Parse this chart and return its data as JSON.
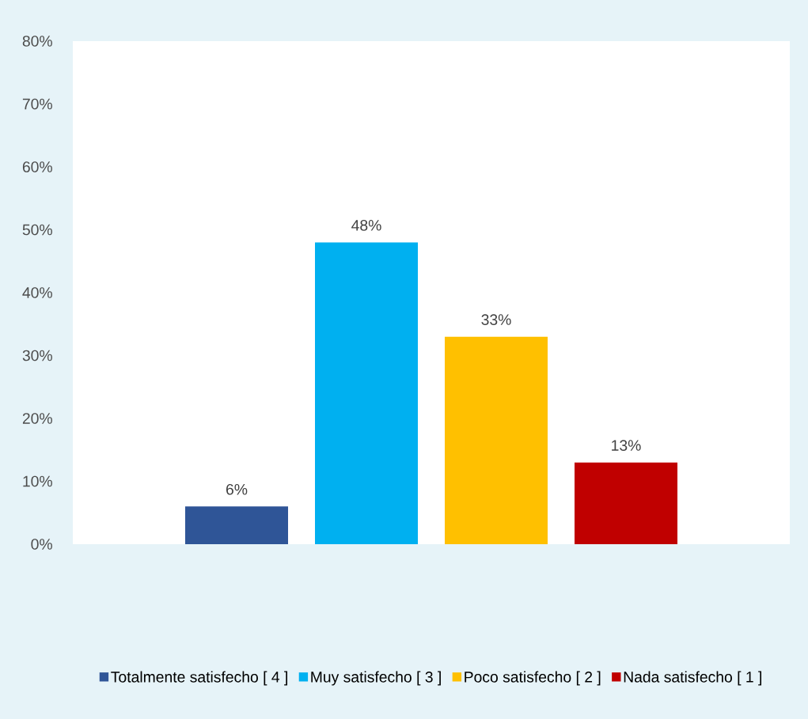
{
  "chart_data": {
    "type": "bar",
    "categories": [
      null
    ],
    "series": [
      {
        "name": "Totalmente satisfecho  [ 4 ]",
        "color": "#2f5597",
        "values": [
          6
        ],
        "value_labels": [
          "6%"
        ]
      },
      {
        "name": "Muy satisfecho [ 3 ]",
        "color": "#00b0f0",
        "values": [
          48
        ],
        "value_labels": [
          "48%"
        ]
      },
      {
        "name": "Poco satisfecho [ 2 ]",
        "color": "#ffc000",
        "values": [
          33
        ],
        "value_labels": [
          "33%"
        ]
      },
      {
        "name": "Nada satisfecho  [ 1 ]",
        "color": "#c00000",
        "values": [
          13
        ],
        "value_labels": [
          "13%"
        ]
      }
    ],
    "ylim": [
      0,
      80
    ],
    "yticks": [
      {
        "value": 0,
        "label": "0%"
      },
      {
        "value": 10,
        "label": "10%"
      },
      {
        "value": 20,
        "label": "20%"
      },
      {
        "value": 30,
        "label": "30%"
      },
      {
        "value": 40,
        "label": "40%"
      },
      {
        "value": 50,
        "label": "50%"
      },
      {
        "value": 60,
        "label": "60%"
      },
      {
        "value": 70,
        "label": "70%"
      },
      {
        "value": 80,
        "label": "80%"
      }
    ],
    "grid": false,
    "legend": "bottom"
  }
}
